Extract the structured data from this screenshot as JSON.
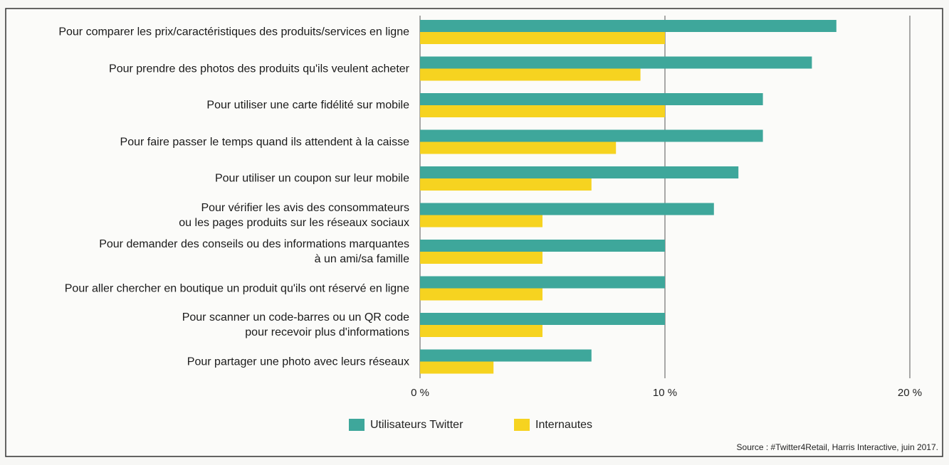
{
  "chart_data": {
    "type": "bar",
    "orientation": "horizontal",
    "categories": [
      "Pour comparer les prix/caractéristiques des produits/services en ligne",
      "Pour prendre des photos des produits qu'ils veulent acheter",
      "Pour utiliser une carte fidélité sur mobile",
      "Pour faire passer le temps quand ils attendent à la caisse",
      "Pour utiliser un coupon sur leur mobile",
      "Pour vérifier les avis des consommateurs\nou les pages produits sur les réseaux sociaux",
      "Pour demander des conseils ou des informations marquantes\nà un ami/sa famille",
      "Pour aller chercher en boutique un produit qu'ils ont réservé en ligne",
      "Pour scanner un code-barres ou un QR code\npour recevoir plus d'informations",
      "Pour partager une photo avec leurs réseaux"
    ],
    "series": [
      {
        "name": "Utilisateurs Twitter",
        "color": "#3ea79b",
        "values": [
          17,
          16,
          14,
          14,
          13,
          12,
          10,
          10,
          10,
          7
        ]
      },
      {
        "name": "Internautes",
        "color": "#f6d320",
        "values": [
          10,
          9,
          10,
          8,
          7,
          5,
          5,
          5,
          5,
          3
        ]
      }
    ],
    "xlim": [
      0,
      20
    ],
    "xticks": [
      {
        "value": 0,
        "label": "0 %"
      },
      {
        "value": 10,
        "label": "10 %"
      },
      {
        "value": 20,
        "label": "20 %"
      }
    ],
    "grid": true,
    "legend": "bottom",
    "source": "Source : #Twitter4Retail, Harris Interactive, juin 2017."
  }
}
